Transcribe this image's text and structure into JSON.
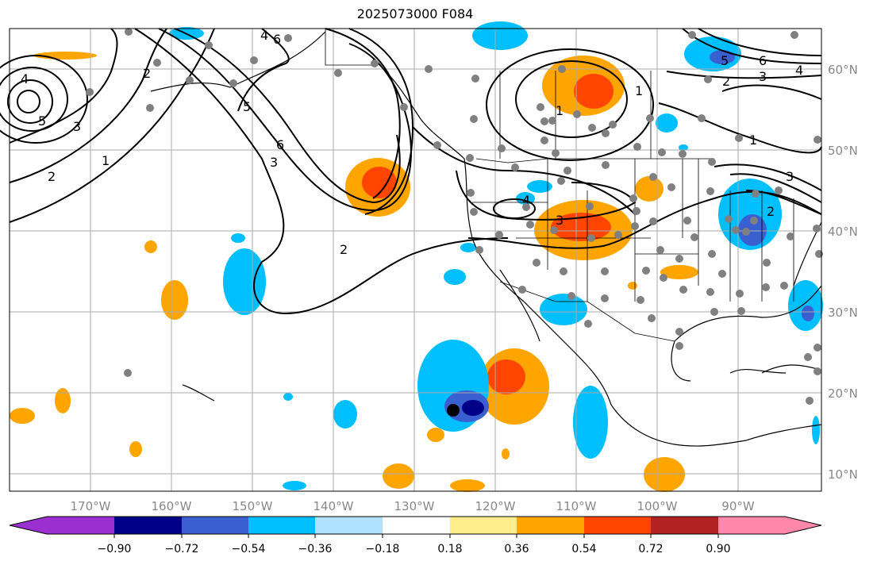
{
  "title": "2025073000 F084",
  "longitude_labels": [
    "170°W",
    "160°W",
    "150°W",
    "140°W",
    "130°W",
    "120°W",
    "110°W",
    "100°W",
    "90°W"
  ],
  "latitude_labels": [
    "60°N",
    "50°N",
    "40°N",
    "30°N",
    "20°N",
    "10°N"
  ],
  "colorbar": {
    "tick_labels": [
      "−0.90",
      "−0.72",
      "−0.54",
      "−0.36",
      "−0.18",
      "0.18",
      "0.36",
      "0.54",
      "0.72",
      "0.90"
    ],
    "colors": [
      "#9b30d0",
      "#000088",
      "#3a5fd0",
      "#00bfff",
      "#b0e0ff",
      "#ffffff",
      "#ffec8b",
      "#ffa500",
      "#ff4500",
      "#b22222",
      "#ff88aa"
    ]
  },
  "contour_labels": [
    "4",
    "6",
    "5",
    "3",
    "2",
    "1",
    "4",
    "5",
    "3",
    "6",
    "2",
    "2",
    "4",
    "3",
    "1",
    "1",
    "2",
    "3",
    "5",
    "6",
    "4",
    "1",
    "3",
    "2"
  ],
  "colors": {
    "line": "#000000",
    "grid": "#aaaaaa",
    "station": "#808080",
    "marker": "#000000"
  }
}
